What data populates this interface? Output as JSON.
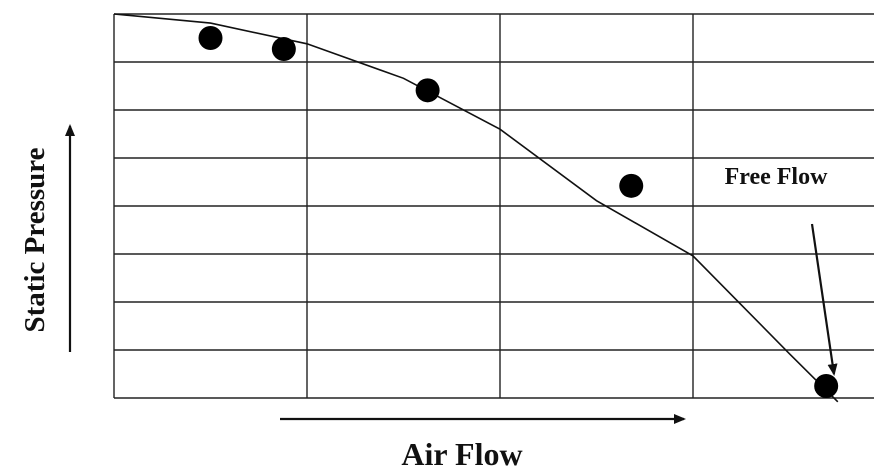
{
  "chart_data": {
    "type": "line",
    "title": "",
    "xlabel": "Air Flow",
    "ylabel": "Static Pressure",
    "xlim": [
      0,
      8
    ],
    "ylim": [
      0,
      8
    ],
    "grid": true,
    "grid_x_divisions": 4,
    "grid_y_divisions": 8,
    "series": [
      {
        "values_x": [
          0,
          1,
          2,
          3,
          4,
          5,
          6,
          7,
          7.5
        ],
        "values_y": [
          8,
          7.81,
          7.38,
          6.66,
          5.6,
          4.11,
          2.96,
          0.92,
          -0.08
        ],
        "style": "line",
        "color": "#000000"
      },
      {
        "values_x": [
          1,
          1.76,
          3.25,
          5.36,
          7.38
        ],
        "values_y": [
          7.5,
          7.27,
          6.41,
          4.42,
          0.25
        ],
        "style": "scatter",
        "color": "#000000"
      }
    ],
    "annotations": [
      {
        "text": "Free Flow",
        "points_to_x": 7.38,
        "points_to_y": 0.25
      }
    ]
  }
}
